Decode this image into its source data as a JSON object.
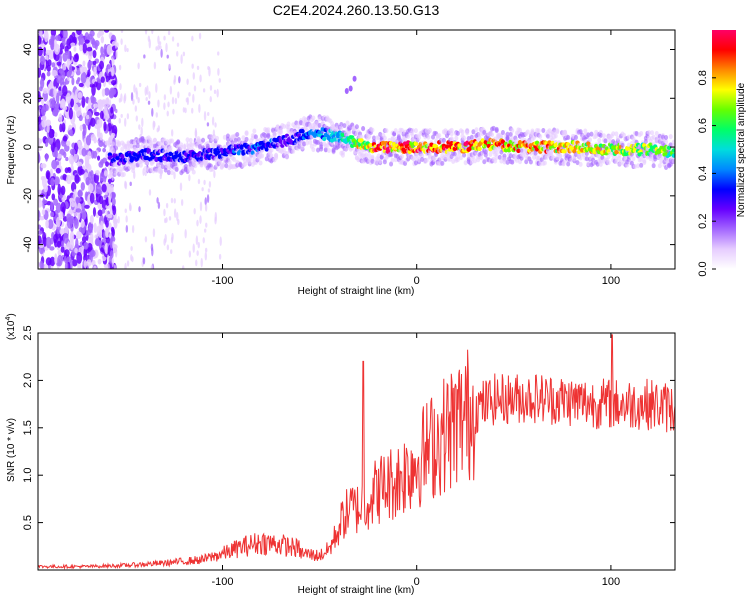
{
  "figure": {
    "title": "C2E4.2024.260.13.50.G13"
  },
  "chart_data": [
    {
      "type": "heatmap",
      "xlabel": "Height of straight line (km)",
      "ylabel": "Frequency (Hz)",
      "xlim": [
        -195,
        133
      ],
      "ylim": [
        -50,
        48
      ],
      "x_ticks": [
        -100,
        0,
        100
      ],
      "y_ticks": [
        -40,
        -20,
        0,
        20,
        40
      ],
      "grid": false,
      "colorbar": {
        "label": "Normalized spectral amplitude",
        "range": [
          0,
          1
        ],
        "ticks": [
          "0.0",
          "0.2",
          "0.4",
          "0.6",
          "0.8"
        ],
        "colormap": [
          "#ffffff",
          "#e6ccff",
          "#a366ff",
          "#6600ff",
          "#0000ff",
          "#0088ff",
          "#00dddd",
          "#00ff66",
          "#66ff00",
          "#ffff00",
          "#ff8800",
          "#ff0000",
          "#ff0066"
        ]
      },
      "ridge": {
        "x": [
          -155,
          -140,
          -120,
          -100,
          -80,
          -65,
          -55,
          -45,
          -35,
          -30,
          -20,
          0,
          20,
          40,
          60,
          80,
          100,
          120,
          133
        ],
        "y": [
          -5,
          -3,
          -4,
          -2,
          0,
          3,
          6,
          5,
          3,
          1,
          0,
          0,
          0,
          1,
          0,
          0,
          -1,
          -1,
          -2
        ],
        "amplitude": [
          0.3,
          0.35,
          0.32,
          0.35,
          0.38,
          0.3,
          0.4,
          0.45,
          0.55,
          0.75,
          0.9,
          0.9,
          0.9,
          0.85,
          0.85,
          0.8,
          0.75,
          0.7,
          0.65
        ]
      }
    },
    {
      "type": "line",
      "xlabel": "Height of straight line (km)",
      "ylabel": "SNR (10 * v/v)",
      "y_scale_label": "(x10^4)",
      "xlim": [
        -195,
        133
      ],
      "ylim": [
        0,
        2.5
      ],
      "x_ticks": [
        -100,
        0,
        100
      ],
      "y_ticks": [
        0.5,
        1.0,
        1.5,
        2.0,
        2.5
      ],
      "grid": false,
      "series": [
        {
          "color": "#ee3333",
          "x": [
            -195,
            -170,
            -150,
            -130,
            -110,
            -100,
            -90,
            -80,
            -70,
            -60,
            -50,
            -45,
            -42,
            -38,
            -34,
            -30,
            -25,
            -20,
            -15,
            -10,
            -5,
            0,
            10,
            20,
            30,
            40,
            60,
            80,
            100,
            120,
            133
          ],
          "y": [
            0.03,
            0.03,
            0.04,
            0.06,
            0.09,
            0.14,
            0.2,
            0.24,
            0.22,
            0.18,
            0.15,
            0.22,
            0.35,
            0.55,
            0.65,
            0.65,
            0.75,
            0.85,
            0.9,
            0.95,
            1.05,
            1.15,
            1.35,
            1.55,
            1.7,
            1.8,
            1.82,
            1.78,
            1.75,
            1.75,
            1.7
          ]
        }
      ]
    }
  ]
}
